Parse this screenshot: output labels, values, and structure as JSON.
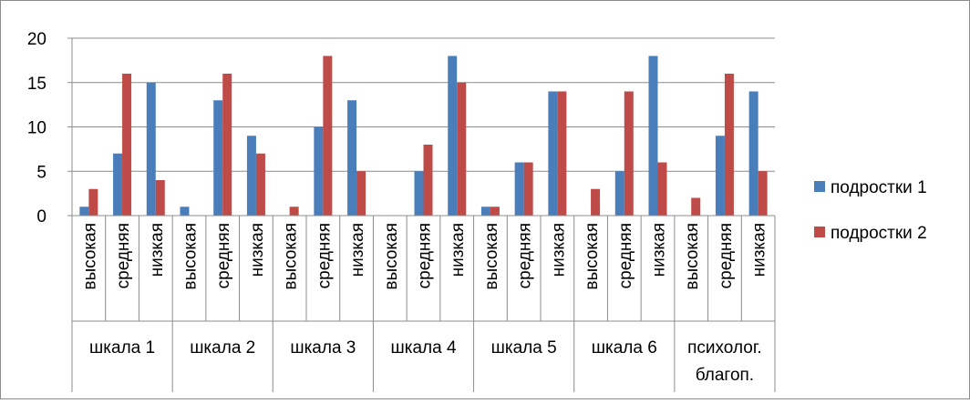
{
  "chart_data": {
    "type": "bar",
    "title": "",
    "xlabel": "",
    "ylabel": "",
    "ylim": [
      0,
      20
    ],
    "yticks": [
      0,
      5,
      10,
      15,
      20
    ],
    "grid": "horizontal",
    "legend_position": "right",
    "groups": [
      {
        "label": "шкала 1",
        "label_lines": [
          "шкала 1"
        ]
      },
      {
        "label": "шкала 2",
        "label_lines": [
          "шкала 2"
        ]
      },
      {
        "label": "шкала 3",
        "label_lines": [
          "шкала 3"
        ]
      },
      {
        "label": "шкала 4",
        "label_lines": [
          "шкала 4"
        ]
      },
      {
        "label": "шкала 5",
        "label_lines": [
          "шкала 5"
        ]
      },
      {
        "label": "шкала 6",
        "label_lines": [
          "шкала 6"
        ]
      },
      {
        "label": "психолог. благоп.",
        "label_lines": [
          "психолог.",
          "благоп."
        ]
      }
    ],
    "categories": [
      "высокая",
      "средняя",
      "низкая",
      "высокая",
      "средняя",
      "низкая",
      "высокая",
      "средняя",
      "низкая",
      "высокая",
      "средняя",
      "низкая",
      "высокая",
      "средняя",
      "низкая",
      "высокая",
      "средняя",
      "низкая",
      "высокая",
      "средняя",
      "низкая"
    ],
    "series": [
      {
        "name": "подростки 1",
        "color": "#4a7ebb",
        "values": [
          1,
          7,
          15,
          1,
          13,
          9,
          0,
          10,
          13,
          0,
          5,
          18,
          1,
          6,
          14,
          0,
          5,
          18,
          0,
          9,
          14
        ]
      },
      {
        "name": "подростки 2",
        "color": "#be4b48",
        "values": [
          3,
          16,
          4,
          0,
          16,
          7,
          1,
          18,
          5,
          0,
          8,
          15,
          1,
          6,
          14,
          3,
          14,
          6,
          2,
          16,
          5
        ]
      }
    ]
  }
}
